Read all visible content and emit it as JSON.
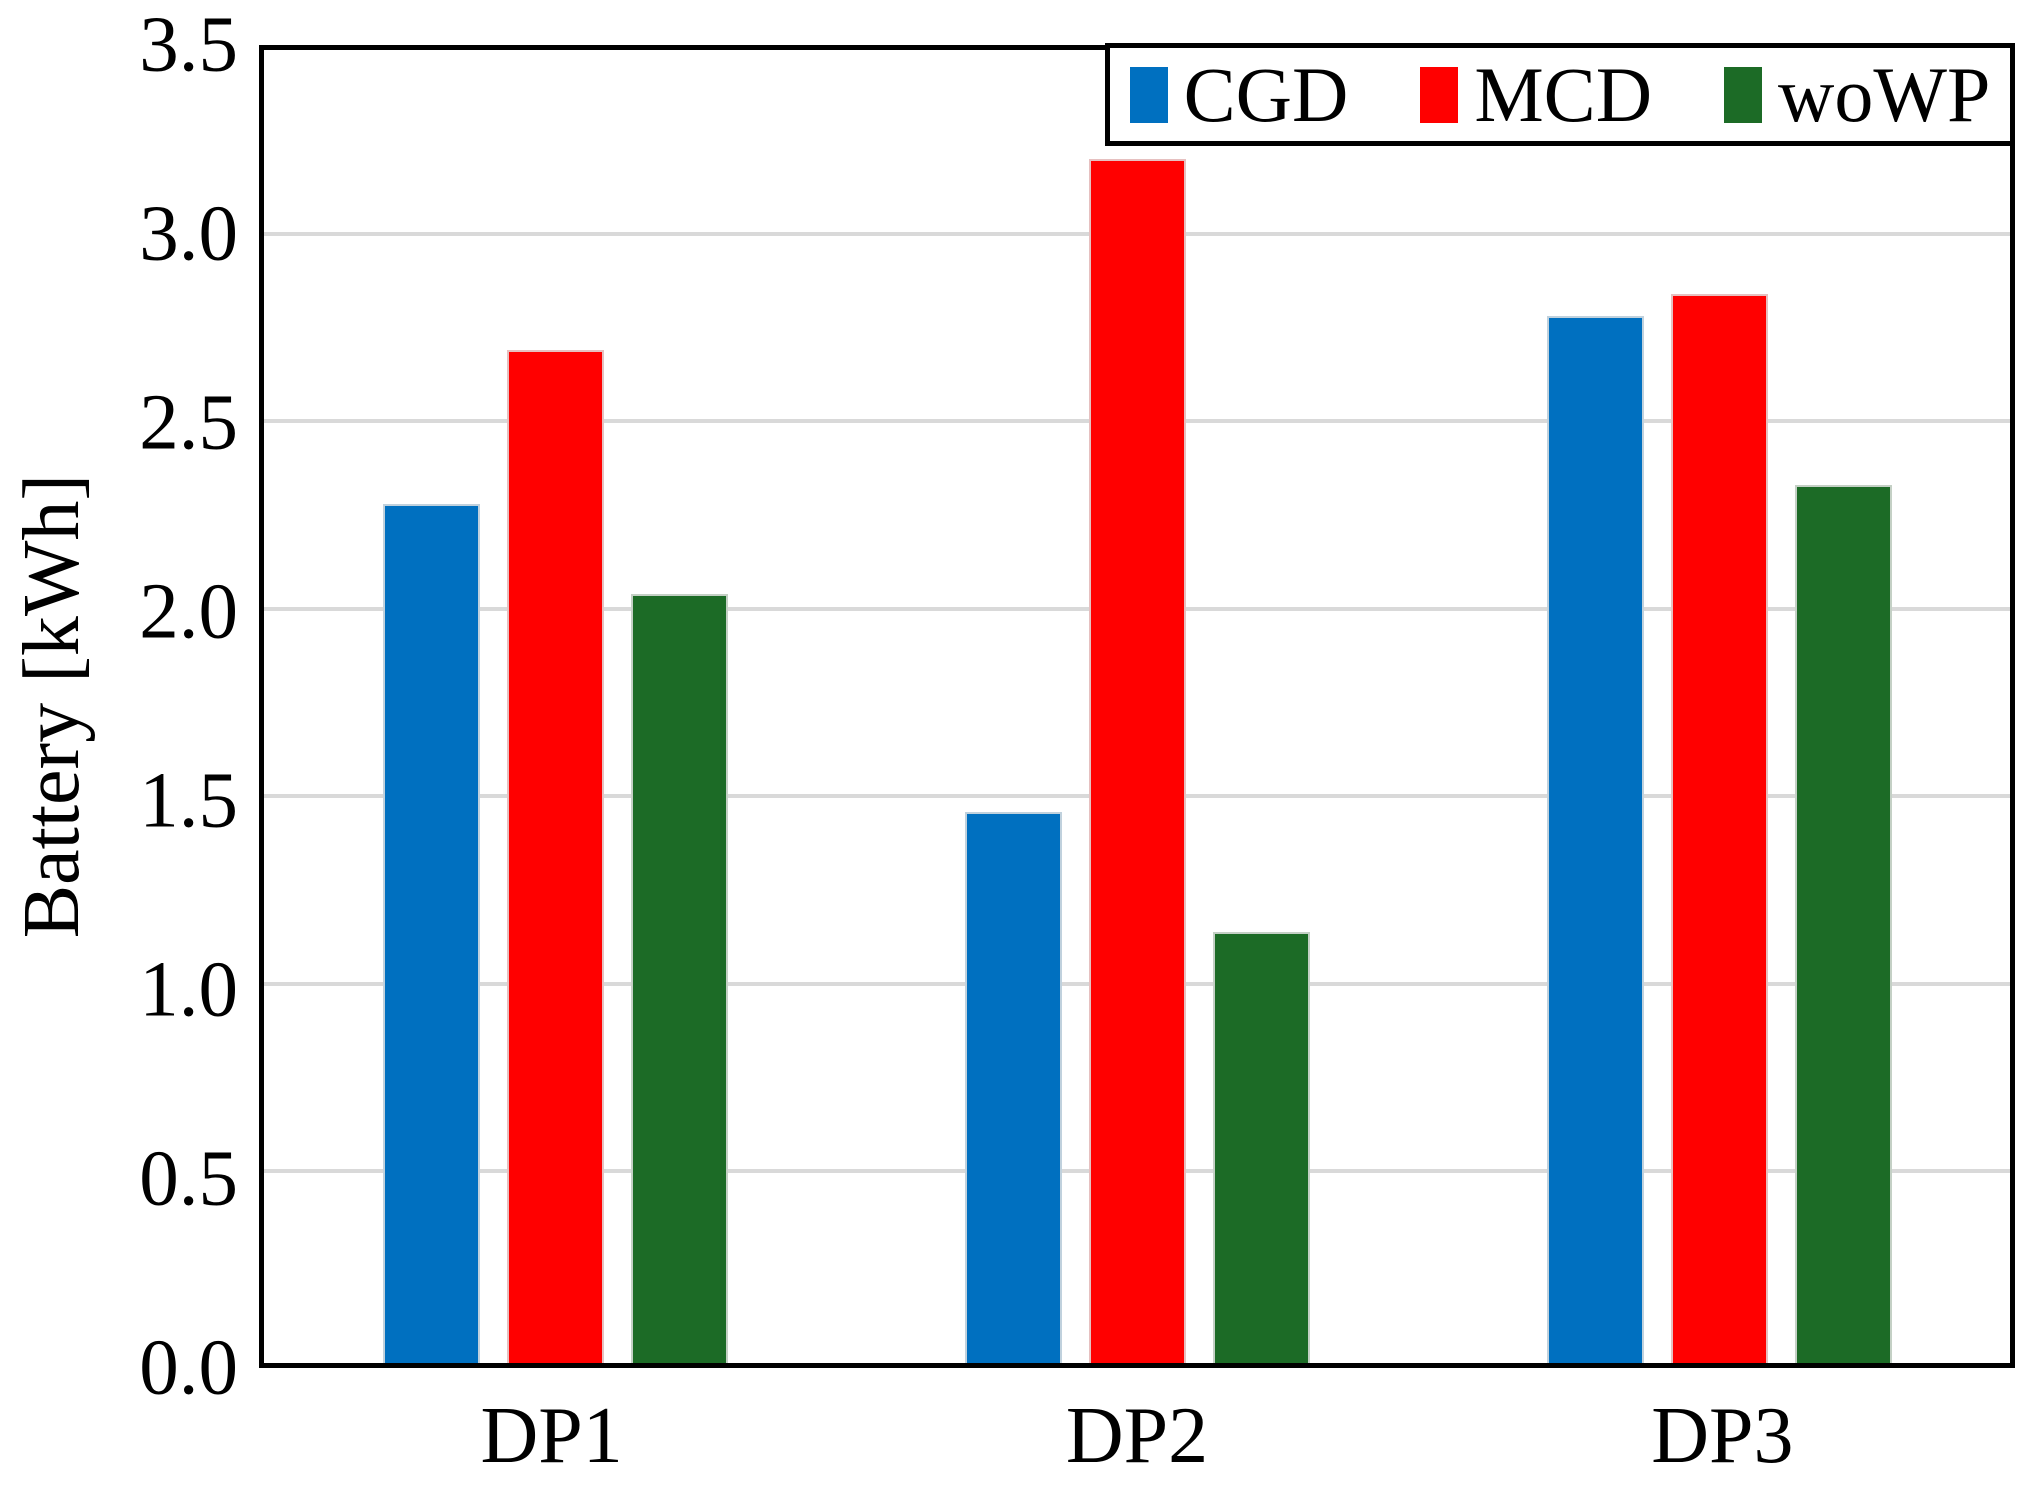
{
  "chart_data": {
    "type": "bar",
    "title": "",
    "xlabel": "",
    "ylabel": "Battery [kWh]",
    "categories": [
      "DP1",
      "DP2",
      "DP3"
    ],
    "series": [
      {
        "name": "CGD",
        "color": "#0070C0",
        "values": [
          2.29,
          1.47,
          2.79
        ]
      },
      {
        "name": "MCD",
        "color": "#FF0000",
        "values": [
          2.7,
          3.21,
          2.85
        ]
      },
      {
        "name": "woWP",
        "color": "#1C6B26",
        "values": [
          2.05,
          1.15,
          2.34
        ]
      }
    ],
    "ylim": [
      0.0,
      3.5
    ],
    "ytick_step": 0.5,
    "ytick_labels": [
      "0.0",
      "0.5",
      "1.0",
      "1.5",
      "2.0",
      "2.5",
      "3.0",
      "3.5"
    ],
    "grid": true,
    "gridline_color": "#d9d9d9",
    "axis_color": "#000000",
    "legend_position": "top-right"
  }
}
